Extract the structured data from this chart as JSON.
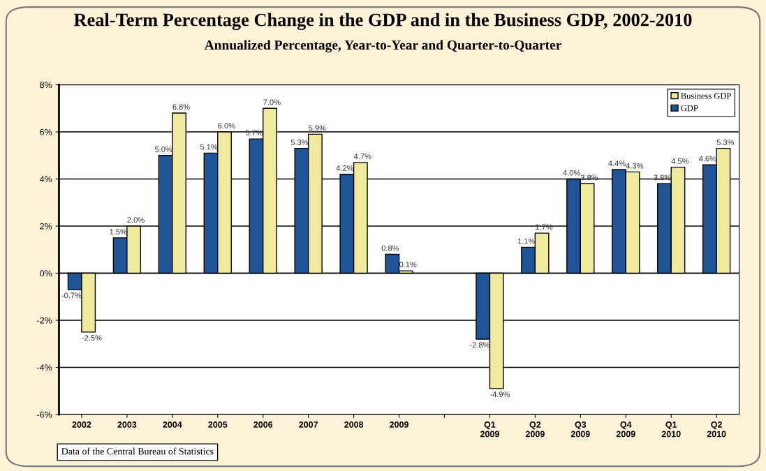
{
  "chart_data": {
    "type": "bar",
    "title": "Real-Term Percentage Change in the GDP and in the Business GDP, 2002-2010",
    "subtitle": "Annualized Percentage, Year-to-Year and Quarter-to-Quarter",
    "categories": [
      "2002",
      "2003",
      "2004",
      "2005",
      "2006",
      "2007",
      "2008",
      "2009",
      null,
      "Q1\n2009",
      "Q2\n2009",
      "Q3\n2009",
      "Q4\n2009",
      "Q1\n2010",
      "Q2\n2010"
    ],
    "series": [
      {
        "name": "GDP",
        "color": "#1f5596",
        "values": [
          -0.7,
          1.5,
          5.0,
          5.1,
          5.7,
          5.3,
          4.2,
          0.8,
          null,
          -2.8,
          1.1,
          4.0,
          4.4,
          3.8,
          4.6
        ],
        "value_labels": [
          "-0.7%",
          "1.5%",
          "5.0%",
          "5.1%",
          "5.7%",
          "5.3%",
          "4.2%",
          "0.8%",
          null,
          "-2.8%",
          "1.1%",
          "4.0%",
          "4.4%",
          "3.8%",
          "4.6%"
        ]
      },
      {
        "name": "Business GDP",
        "color": "#f0ea9e",
        "values": [
          -2.5,
          2.0,
          6.8,
          6.0,
          7.0,
          5.9,
          4.7,
          0.1,
          null,
          -4.9,
          1.7,
          3.8,
          4.3,
          4.5,
          5.3
        ],
        "value_labels": [
          "-2.5%",
          "2.0%",
          "6.8%",
          "6.0%",
          "7.0%",
          "5.9%",
          "4.7%",
          "0.1%",
          null,
          "-4.9%",
          "1.7%",
          "3.8%",
          "4.3%",
          "4.5%",
          "5.3%"
        ]
      }
    ],
    "ylim": [
      -6,
      8
    ],
    "yticks": [
      {
        "value": -6,
        "label": "-6%"
      },
      {
        "value": -4,
        "label": "-4%"
      },
      {
        "value": -2,
        "label": "-2%"
      },
      {
        "value": 0,
        "label": "0%"
      },
      {
        "value": 2,
        "label": "2%"
      },
      {
        "value": 4,
        "label": "4%"
      },
      {
        "value": 6,
        "label": "6%"
      },
      {
        "value": 8,
        "label": "8%"
      }
    ],
    "grid": "y",
    "legend": "top right",
    "annotations": [
      "Data of the Central Bureau of Statistics"
    ]
  }
}
